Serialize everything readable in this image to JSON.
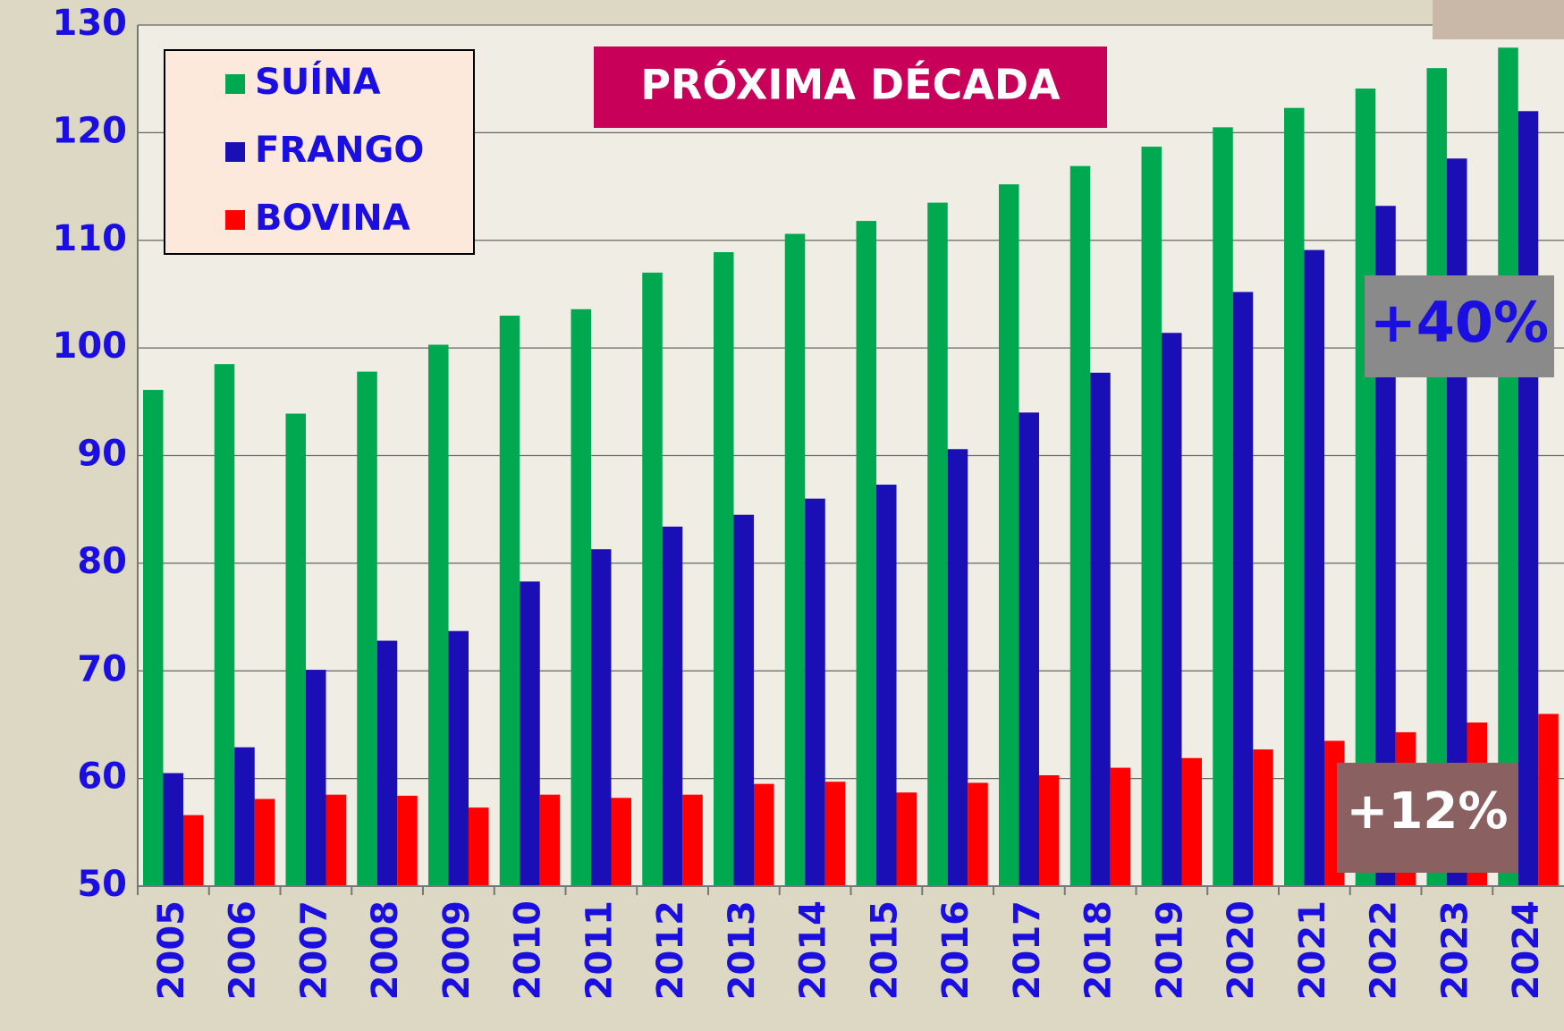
{
  "chart_data": {
    "type": "bar",
    "title": "PRÓXIMA DÉCADA",
    "categories": [
      "2005",
      "2006",
      "2007",
      "2008",
      "2009",
      "2010",
      "2011",
      "2012",
      "2013",
      "2014",
      "2015",
      "2016",
      "2017",
      "2018",
      "2019",
      "2020",
      "2021",
      "2022",
      "2023",
      "2024"
    ],
    "series": [
      {
        "name": "SUÍNA",
        "color": "#00a84f",
        "values": [
          96.1,
          98.5,
          93.9,
          97.8,
          100.3,
          103.0,
          103.6,
          107.0,
          108.9,
          110.6,
          111.8,
          113.5,
          115.2,
          116.9,
          118.7,
          120.5,
          122.3,
          124.1,
          126.0,
          127.9
        ]
      },
      {
        "name": "FRANGO",
        "color": "#1a0fb4",
        "values": [
          60.5,
          62.9,
          70.1,
          72.8,
          73.7,
          78.3,
          81.3,
          83.4,
          84.5,
          86.0,
          87.3,
          90.6,
          94.0,
          97.7,
          101.4,
          105.2,
          109.1,
          113.2,
          117.6,
          122.0
        ]
      },
      {
        "name": "BOVINA",
        "color": "#ff0000",
        "values": [
          56.6,
          58.1,
          58.5,
          58.4,
          57.3,
          58.5,
          58.2,
          58.5,
          59.5,
          59.7,
          58.7,
          59.6,
          60.3,
          61.0,
          61.9,
          62.7,
          63.5,
          64.3,
          65.2,
          66.0
        ]
      }
    ],
    "ylim": [
      50,
      130
    ],
    "yticks": [
      50,
      60,
      70,
      80,
      90,
      100,
      110,
      120,
      130
    ],
    "grid": true,
    "legend": "top-left",
    "annotations": [
      "+40%",
      "+12%"
    ]
  }
}
